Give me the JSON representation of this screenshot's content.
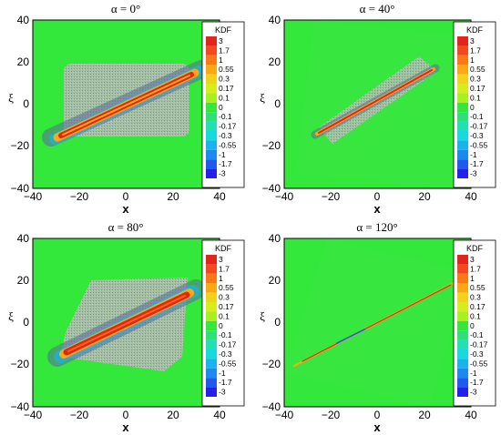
{
  "chart_data": [
    {
      "type": "heatmap",
      "title": "α = 0°",
      "xlabel": "x",
      "ylabel": "ξ",
      "xlim": [
        -40,
        40
      ],
      "ylim": [
        -40,
        40
      ],
      "x_ticks": [
        "−40",
        "−20",
        "0",
        "20",
        "40"
      ],
      "y_ticks": [
        "−40",
        "−20",
        "0",
        "20",
        "40"
      ],
      "legend_title": "KDF",
      "legend_levels": [
        "3",
        "1.7",
        "1",
        "0.55",
        "0.3",
        "0.17",
        "0.1",
        "0",
        "-0.1",
        "-0.17",
        "-0.3",
        "-0.55",
        "-1",
        "-1.7",
        "-3"
      ],
      "band_start": [
        -26,
        -15
      ],
      "band_end": [
        26,
        15
      ],
      "band_peak": 3
    },
    {
      "type": "heatmap",
      "title": "α = 40°",
      "xlabel": "x",
      "ylabel": "ξ",
      "xlim": [
        -40,
        40
      ],
      "ylim": [
        -40,
        40
      ],
      "x_ticks": [
        "−40",
        "−20",
        "0",
        "20",
        "40"
      ],
      "y_ticks": [
        "−40",
        "−20",
        "0",
        "20",
        "40"
      ],
      "legend_title": "KDF",
      "legend_levels": [
        "3",
        "1.7",
        "1",
        "0.55",
        "0.3",
        "0.17",
        "0.1",
        "0",
        "-0.1",
        "-0.17",
        "-0.3",
        "-0.55",
        "-1",
        "-1.7",
        "-3"
      ],
      "band_start": [
        -26,
        -15
      ],
      "band_end": [
        26,
        15
      ],
      "band_peak": 3
    },
    {
      "type": "heatmap",
      "title": "α = 80°",
      "xlabel": "x",
      "ylabel": "ξ",
      "xlim": [
        -40,
        40
      ],
      "ylim": [
        -40,
        40
      ],
      "x_ticks": [
        "−40",
        "−20",
        "0",
        "20",
        "40"
      ],
      "y_ticks": [
        "−40",
        "−20",
        "0",
        "20",
        "40"
      ],
      "legend_title": "KDF",
      "legend_levels": [
        "3",
        "1.7",
        "1",
        "0.55",
        "0.3",
        "0.17",
        "0.1",
        "0",
        "-0.1",
        "-0.17",
        "-0.3",
        "-0.55",
        "-1",
        "-1.7",
        "-3"
      ],
      "band_start": [
        -26,
        -15
      ],
      "band_end": [
        26,
        15
      ],
      "band_peak": 3
    },
    {
      "type": "heatmap",
      "title": "α = 120°",
      "xlabel": "x",
      "ylabel": "ξ",
      "xlim": [
        -40,
        40
      ],
      "ylim": [
        -40,
        40
      ],
      "x_ticks": [
        "−40",
        "−20",
        "0",
        "20",
        "40"
      ],
      "y_ticks": [
        "−40",
        "−20",
        "0",
        "20",
        "40"
      ],
      "legend_title": "KDF",
      "legend_levels": [
        "3",
        "1.7",
        "1",
        "0.55",
        "0.3",
        "0.17",
        "0.1",
        "0",
        "-0.1",
        "-0.17",
        "-0.3",
        "-0.55",
        "-1",
        "-1.7",
        "-3"
      ],
      "band_start": [
        -35,
        -20
      ],
      "band_end": [
        35,
        20
      ],
      "band_peak": 1
    }
  ],
  "colors": {
    "background_green": "#33e83a",
    "scale": [
      "#e0251a",
      "#f24a1c",
      "#f97a14",
      "#fba817",
      "#f3d21c",
      "#d5ec1d",
      "#a8f01e",
      "#33e83a",
      "#2de07a",
      "#22e0b4",
      "#18d8e0",
      "#19b4ee",
      "#1d88f0",
      "#2258ee",
      "#2422e6"
    ]
  }
}
